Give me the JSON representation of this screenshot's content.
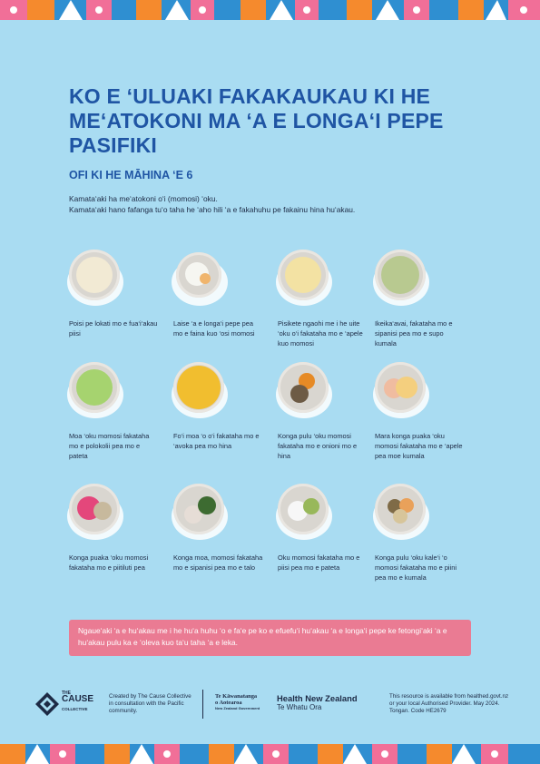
{
  "poster": {
    "title": "KO E ‘ULUAKI FAKAKAUKAU KI HE ME‘ATOKONI MA ‘A E LONGA‘I PEPE PASIFIKI",
    "subtitle": "OFI KI HE MĀHINA ‘E 6",
    "intro_1": "Kamata‘aki ha me‘atokoni o‘i (momosi) ‘oku.",
    "intro_2": "Kamata‘aki hano fafanga tu‘o taha he ‘aho hili ‘a e fakahuhu pe fakainu hina hu‘akau."
  },
  "foods": [
    {
      "label": "Poisi pe lokati mo e fua‘i‘akau piisi",
      "colors": [
        "#f2ead4"
      ]
    },
    {
      "label": "Laise ‘a e longa‘i pepe pea mo e faina kuo ‘osi momosi",
      "colors": [
        "#f6f6f1",
        "#f0b56d"
      ]
    },
    {
      "label": "Pisikete ngaohi me i he uite ‘oku o‘i fakataha mo e ‘apele kuo momosi",
      "colors": [
        "#f3e2a3"
      ]
    },
    {
      "label": "Ikeika‘avai, fakataha mo e sipanisi pea mo e supo kumala",
      "colors": [
        "#b8c990"
      ]
    },
    {
      "label": "Moa ‘oku momosi fakataha mo e polokolii pea mo e pateta",
      "colors": [
        "#a6d36f"
      ]
    },
    {
      "label": "Fo‘i moa ‘o o‘i fakataha mo e ‘avoka pea mo hina",
      "colors": [
        "#f1be2f"
      ]
    },
    {
      "label": "Konga pulu ‘oku momosi fakataha mo e onioni mo e hina",
      "colors": [
        "#e68a25",
        "#6d5b45"
      ]
    },
    {
      "label": "Mara konga puaka ‘oku momosi fakataha mo e ‘apele pea moe kumala",
      "colors": [
        "#f0bca0",
        "#f4cf7e"
      ]
    },
    {
      "label": "Konga puaka ‘oku momosi fakataha mo e piitiluti pea",
      "colors": [
        "#e4477b",
        "#c7b99d"
      ]
    },
    {
      "label": "Konga moa, momosi fakataha mo e sipanisi pea mo e talo",
      "colors": [
        "#e6ddd6",
        "#3d6b31"
      ]
    },
    {
      "label": "Oku momosi fakataha mo e piisi pea mo e pateta",
      "colors": [
        "#f7f7f7",
        "#98b85a"
      ]
    },
    {
      "label": "Konga pulu ‘oku kale‘i ‘o momosi fakataha mo e piini pea mo e kumala",
      "colors": [
        "#7f6b47",
        "#e9a15a"
      ]
    }
  ],
  "notice": "Ngaue‘aki ‘a e hu‘akau me i he hu‘a huhu ‘o e fa‘e pe ko e efuefu‘i hu‘akau ‘a e longa‘i pepe ke fetongi‘aki ‘a e hu‘akau pulu ka e ‘oleva kuo ta‘u taha ‘a e leka.",
  "footer": {
    "logo_the": "THE",
    "logo_cause": "CAUSE",
    "logo_collective": "COLLECTIVE",
    "created_by": "Created by The Cause Collective in consultation with the Pacific community.",
    "govt_line1": "Te Kāwanatanga",
    "govt_line2": "o Aotearoa",
    "govt_line3": "New Zealand Government",
    "health_line1": "Health New Zealand",
    "health_line2": "Te Whatu Ora",
    "availability": "This resource is available from healthed.govt.nz or your local Authorised Provider. May 2024. Tongan. Code HE2679"
  },
  "brand_colors": {
    "background": "#a9dcf2",
    "title": "#1f55a4",
    "notice": "#ea7b93",
    "band_1": "#f16f98",
    "band_2": "#f58a2d",
    "band_3": "#2f8fd1"
  }
}
